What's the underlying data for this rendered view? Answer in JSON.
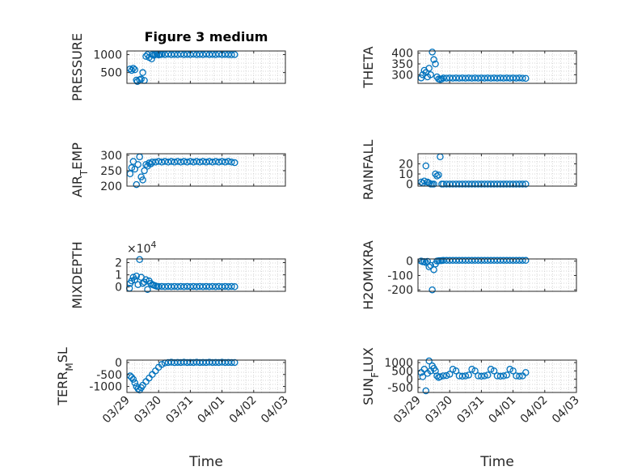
{
  "title": "Figure 3 medium",
  "colors": {
    "marker": "#0072BD",
    "axis": "#262626",
    "grid": "#c8c8c8",
    "background": "#ffffff"
  },
  "chart_data": [
    {
      "type": "scatter",
      "ylabel": "PRESSURE",
      "title": "Figure 3 medium",
      "xlim": [
        "03/29",
        "04/03"
      ],
      "ylim": [
        200,
        1100
      ],
      "yticks": [
        {
          "v": 500,
          "t": "500"
        },
        {
          "v": 1000,
          "t": "1000"
        }
      ],
      "grid": true,
      "x": [
        0.1,
        0.15,
        0.2,
        0.25,
        0.3,
        0.33,
        0.4,
        0.45,
        0.5,
        0.55,
        0.6,
        0.65,
        0.7,
        0.78,
        0.8,
        0.85,
        0.9,
        0.95,
        1.0,
        1.05,
        1.1,
        1.2,
        1.3,
        1.4,
        1.5,
        1.6,
        1.7,
        1.8,
        1.9,
        2.0,
        2.1,
        2.2,
        2.3,
        2.4,
        2.5,
        2.6,
        2.7,
        2.8,
        2.9,
        3.0,
        3.1,
        3.2,
        3.3,
        3.4
      ],
      "y": [
        600,
        560,
        620,
        580,
        290,
        250,
        300,
        320,
        500,
        280,
        950,
        1000,
        920,
        880,
        1000,
        980,
        1000,
        1010,
        990,
        1000,
        1005,
        1000,
        1010,
        1000,
        1005,
        1000,
        1010,
        1000,
        1005,
        1000,
        1010,
        1000,
        1005,
        1000,
        1010,
        1000,
        1005,
        1000,
        1010,
        1000,
        1005,
        1000,
        995,
        1000
      ]
    },
    {
      "type": "scatter",
      "ylabel": "THETA",
      "xlim": [
        "03/29",
        "04/03"
      ],
      "ylim": [
        260,
        410
      ],
      "yticks": [
        {
          "v": 300,
          "t": "300"
        },
        {
          "v": 350,
          "t": "350"
        },
        {
          "v": 400,
          "t": "400"
        }
      ],
      "grid": true,
      "x": [
        0.1,
        0.15,
        0.2,
        0.25,
        0.3,
        0.35,
        0.4,
        0.45,
        0.5,
        0.55,
        0.6,
        0.65,
        0.7,
        0.75,
        0.8,
        0.9,
        1.0,
        1.1,
        1.2,
        1.3,
        1.4,
        1.5,
        1.6,
        1.7,
        1.8,
        1.9,
        2.0,
        2.1,
        2.2,
        2.3,
        2.4,
        2.5,
        2.6,
        2.7,
        2.8,
        2.9,
        3.0,
        3.1,
        3.2,
        3.3,
        3.4
      ],
      "y": [
        285,
        300,
        320,
        310,
        290,
        330,
        300,
        405,
        370,
        350,
        290,
        280,
        278,
        280,
        285,
        284,
        285,
        284,
        285,
        284,
        285,
        284,
        285,
        284,
        285,
        284,
        285,
        284,
        285,
        284,
        285,
        284,
        285,
        284,
        285,
        284,
        285,
        284,
        285,
        284,
        283
      ]
    },
    {
      "type": "scatter",
      "ylabel": "AIR_TEMP",
      "xlim": [
        "03/29",
        "04/03"
      ],
      "ylim": [
        200,
        305
      ],
      "yticks": [
        {
          "v": 200,
          "t": "200"
        },
        {
          "v": 250,
          "t": "250"
        },
        {
          "v": 300,
          "t": "300"
        }
      ],
      "grid": true,
      "x": [
        0.1,
        0.15,
        0.2,
        0.25,
        0.3,
        0.35,
        0.4,
        0.45,
        0.5,
        0.55,
        0.6,
        0.65,
        0.7,
        0.75,
        0.8,
        0.9,
        1.0,
        1.1,
        1.2,
        1.3,
        1.4,
        1.5,
        1.6,
        1.7,
        1.8,
        1.9,
        2.0,
        2.1,
        2.2,
        2.3,
        2.4,
        2.5,
        2.6,
        2.7,
        2.8,
        2.9,
        3.0,
        3.1,
        3.2,
        3.3,
        3.4
      ],
      "y": [
        240,
        260,
        280,
        255,
        205,
        270,
        295,
        230,
        220,
        250,
        270,
        265,
        275,
        272,
        278,
        278,
        280,
        278,
        280,
        278,
        280,
        278,
        280,
        278,
        280,
        278,
        280,
        278,
        280,
        278,
        280,
        278,
        280,
        278,
        280,
        278,
        280,
        278,
        280,
        278,
        276
      ]
    },
    {
      "type": "scatter",
      "ylabel": "RAINFALL",
      "xlim": [
        "03/29",
        "04/03"
      ],
      "ylim": [
        -2,
        30
      ],
      "yticks": [
        {
          "v": 0,
          "t": "0"
        },
        {
          "v": 10,
          "t": "10"
        },
        {
          "v": 20,
          "t": "20"
        }
      ],
      "grid": true,
      "x": [
        0.1,
        0.15,
        0.2,
        0.25,
        0.3,
        0.35,
        0.4,
        0.45,
        0.5,
        0.55,
        0.6,
        0.65,
        0.7,
        0.75,
        0.8,
        0.9,
        1.0,
        1.1,
        1.2,
        1.3,
        1.4,
        1.5,
        1.6,
        1.7,
        1.8,
        1.9,
        2.0,
        2.1,
        2.2,
        2.3,
        2.4,
        2.5,
        2.6,
        2.7,
        2.8,
        2.9,
        3.0,
        3.1,
        3.2,
        3.3,
        3.4
      ],
      "y": [
        2,
        1,
        3,
        18,
        2,
        1,
        0,
        0,
        0,
        10,
        8,
        9,
        27,
        0,
        0,
        0,
        0,
        0,
        0,
        0,
        0,
        0,
        0,
        0,
        0,
        0,
        0,
        0,
        0,
        0,
        0,
        0,
        0,
        0,
        0,
        0,
        0,
        0,
        0,
        0,
        0
      ]
    },
    {
      "type": "scatter",
      "ylabel": "MIXDEPTH",
      "yexponent": "4",
      "xlim": [
        "03/29",
        "04/03"
      ],
      "ylim": [
        -0.35,
        2.3
      ],
      "yticks": [
        {
          "v": 0,
          "t": "0"
        },
        {
          "v": 1,
          "t": "1"
        },
        {
          "v": 2,
          "t": "2"
        }
      ],
      "grid": true,
      "x": [
        0.08,
        0.1,
        0.15,
        0.2,
        0.25,
        0.3,
        0.35,
        0.4,
        0.45,
        0.5,
        0.55,
        0.6,
        0.65,
        0.7,
        0.75,
        0.8,
        0.85,
        0.9,
        0.95,
        1.0,
        1.1,
        1.2,
        1.3,
        1.4,
        1.5,
        1.6,
        1.7,
        1.8,
        1.9,
        2.0,
        2.1,
        2.2,
        2.3,
        2.4,
        2.5,
        2.6,
        2.7,
        2.8,
        2.9,
        3.0,
        3.1,
        3.2,
        3.3,
        3.4
      ],
      "y": [
        -0.1,
        0.3,
        0.5,
        0.8,
        0.6,
        0.9,
        0.2,
        2.25,
        0.8,
        0.3,
        0.4,
        0.6,
        -0.2,
        0.5,
        0.3,
        0.2,
        0.15,
        0.1,
        0.05,
        0.05,
        0.05,
        0.03,
        0.05,
        0.03,
        0.05,
        0.03,
        0.05,
        0.03,
        0.05,
        0.03,
        0.05,
        0.03,
        0.05,
        0.03,
        0.05,
        0.03,
        0.05,
        0.03,
        0.05,
        0.03,
        0.05,
        0.03,
        0.05,
        0.03
      ]
    },
    {
      "type": "scatter",
      "ylabel": "H2OMIXRA",
      "xlim": [
        "03/29",
        "04/03"
      ],
      "ylim": [
        -210,
        15
      ],
      "yticks": [
        {
          "v": -200,
          "t": "-200"
        },
        {
          "v": -100,
          "t": "-100"
        },
        {
          "v": 0,
          "t": "0"
        }
      ],
      "grid": true,
      "x": [
        0.1,
        0.15,
        0.2,
        0.25,
        0.3,
        0.35,
        0.4,
        0.45,
        0.5,
        0.55,
        0.6,
        0.65,
        0.7,
        0.75,
        0.8,
        0.9,
        1.0,
        1.1,
        1.2,
        1.3,
        1.4,
        1.5,
        1.6,
        1.7,
        1.8,
        1.9,
        2.0,
        2.1,
        2.2,
        2.3,
        2.4,
        2.5,
        2.6,
        2.7,
        2.8,
        2.9,
        3.0,
        3.1,
        3.2,
        3.3,
        3.4
      ],
      "y": [
        0,
        -5,
        -3,
        -10,
        -2,
        -40,
        -30,
        -200,
        -60,
        -20,
        0,
        2,
        3,
        4,
        5,
        5,
        5,
        5,
        5,
        5,
        5,
        5,
        5,
        5,
        5,
        5,
        5,
        5,
        5,
        5,
        5,
        5,
        5,
        5,
        5,
        5,
        5,
        5,
        5,
        5,
        5
      ]
    },
    {
      "type": "scatter",
      "ylabel": "TERR_MSL",
      "xlim": [
        "03/29",
        "04/03"
      ],
      "ylim": [
        -1250,
        100
      ],
      "yticks": [
        {
          "v": -1000,
          "t": "-1000"
        },
        {
          "v": -500,
          "t": "-500"
        },
        {
          "v": 0,
          "t": "0"
        }
      ],
      "grid": true,
      "xticks": [
        {
          "v": 0,
          "t": "03/29"
        },
        {
          "v": 1,
          "t": "03/30"
        },
        {
          "v": 2,
          "t": "03/31"
        },
        {
          "v": 3,
          "t": "04/01"
        },
        {
          "v": 4,
          "t": "04/02"
        },
        {
          "v": 5,
          "t": "04/03"
        }
      ],
      "xlabel": "Time",
      "x": [
        0.1,
        0.15,
        0.2,
        0.25,
        0.3,
        0.35,
        0.4,
        0.45,
        0.5,
        0.6,
        0.7,
        0.8,
        0.9,
        1.0,
        1.1,
        1.2,
        1.3,
        1.4,
        1.5,
        1.6,
        1.7,
        1.8,
        1.9,
        2.0,
        2.1,
        2.2,
        2.3,
        2.4,
        2.5,
        2.6,
        2.7,
        2.8,
        2.9,
        3.0,
        3.1,
        3.2,
        3.3,
        3.4
      ],
      "y": [
        -560,
        -620,
        -700,
        -850,
        -1000,
        -1100,
        -1150,
        -1050,
        -950,
        -800,
        -650,
        -500,
        -350,
        -200,
        -80,
        -20,
        0,
        10,
        -5,
        5,
        0,
        10,
        0,
        5,
        0,
        10,
        0,
        5,
        0,
        10,
        0,
        5,
        0,
        10,
        0,
        5,
        0,
        0
      ]
    },
    {
      "type": "scatter",
      "ylabel": "SUN_FLUX",
      "xlim": [
        "03/29",
        "04/03"
      ],
      "ylim": [
        -800,
        1150
      ],
      "yticks": [
        {
          "v": -500,
          "t": "-500"
        },
        {
          "v": 0,
          "t": "0"
        },
        {
          "v": 500,
          "t": "500"
        },
        {
          "v": 1000,
          "t": "1000"
        }
      ],
      "grid": true,
      "xticks": [
        {
          "v": 0,
          "t": "03/29"
        },
        {
          "v": 1,
          "t": "03/30"
        },
        {
          "v": 2,
          "t": "03/31"
        },
        {
          "v": 3,
          "t": "04/01"
        },
        {
          "v": 4,
          "t": "04/02"
        },
        {
          "v": 5,
          "t": "04/03"
        }
      ],
      "xlabel": "Time",
      "x": [
        0.1,
        0.15,
        0.2,
        0.25,
        0.3,
        0.35,
        0.4,
        0.45,
        0.5,
        0.55,
        0.6,
        0.65,
        0.7,
        0.8,
        0.9,
        1.0,
        1.1,
        1.2,
        1.3,
        1.4,
        1.5,
        1.6,
        1.7,
        1.8,
        1.9,
        2.0,
        2.1,
        2.2,
        2.3,
        2.4,
        2.5,
        2.6,
        2.7,
        2.8,
        2.9,
        3.0,
        3.1,
        3.2,
        3.3,
        3.4
      ],
      "y": [
        400,
        150,
        600,
        -700,
        350,
        1100,
        500,
        800,
        650,
        500,
        200,
        100,
        150,
        200,
        220,
        300,
        600,
        500,
        200,
        180,
        200,
        250,
        600,
        500,
        200,
        180,
        200,
        250,
        600,
        500,
        200,
        180,
        200,
        250,
        600,
        500,
        200,
        180,
        200,
        400
      ]
    }
  ]
}
